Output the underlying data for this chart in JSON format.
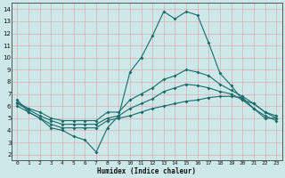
{
  "xlabel": "Humidex (Indice chaleur)",
  "xlim": [
    -0.5,
    23.5
  ],
  "ylim": [
    1.5,
    14.5
  ],
  "xticks": [
    0,
    1,
    2,
    3,
    4,
    5,
    6,
    7,
    8,
    9,
    10,
    11,
    12,
    13,
    14,
    15,
    16,
    17,
    18,
    19,
    20,
    21,
    22,
    23
  ],
  "yticks": [
    2,
    3,
    4,
    5,
    6,
    7,
    8,
    9,
    10,
    11,
    12,
    13,
    14
  ],
  "bg_color": "#cce8e8",
  "line_color": "#1a6b6b",
  "grid_color": "#ddb8b8",
  "line1_y": [
    6.5,
    5.5,
    5.0,
    4.2,
    4.0,
    3.5,
    3.2,
    2.2,
    4.2,
    5.2,
    8.8,
    10.0,
    11.8,
    13.8,
    13.2,
    13.8,
    13.5,
    11.2,
    8.7,
    7.7,
    6.5,
    6.2,
    5.5,
    5.2
  ],
  "line2_y": [
    6.3,
    5.8,
    5.5,
    5.0,
    4.8,
    4.8,
    4.8,
    4.8,
    5.5,
    5.5,
    6.5,
    7.0,
    7.5,
    8.2,
    8.5,
    9.0,
    8.8,
    8.5,
    7.8,
    7.3,
    6.8,
    6.2,
    5.5,
    5.0
  ],
  "line3_y": [
    6.2,
    5.7,
    5.2,
    4.8,
    4.5,
    4.5,
    4.5,
    4.5,
    5.0,
    5.2,
    5.8,
    6.2,
    6.6,
    7.2,
    7.5,
    7.8,
    7.7,
    7.5,
    7.2,
    7.0,
    6.5,
    5.8,
    5.2,
    4.8
  ],
  "line4_y": [
    6.0,
    5.5,
    5.0,
    4.5,
    4.2,
    4.2,
    4.2,
    4.2,
    4.8,
    5.0,
    5.2,
    5.5,
    5.8,
    6.0,
    6.2,
    6.4,
    6.5,
    6.7,
    6.8,
    6.8,
    6.7,
    5.8,
    5.0,
    5.0
  ]
}
